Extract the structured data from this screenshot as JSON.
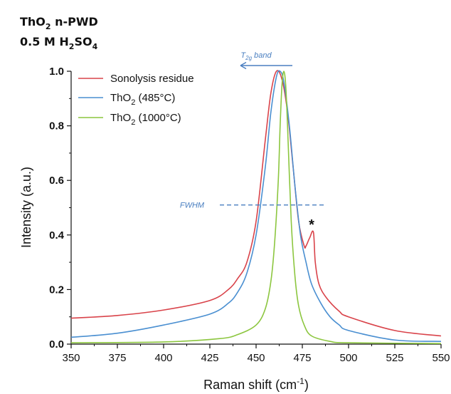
{
  "title": {
    "line1": {
      "pre": "ThO",
      "sub": "2",
      "post": " n-PWD"
    },
    "line2": {
      "pre": "0.5 M H",
      "sub1": "2",
      "mid": "SO",
      "sub2": "4"
    }
  },
  "chart_data": {
    "type": "line",
    "xlabel": {
      "pre": "Raman shift (cm",
      "sup": "-1",
      "post": ")"
    },
    "ylabel": "Intensity (a.u.)",
    "xlim": [
      350,
      550
    ],
    "ylim": [
      0.0,
      1.0
    ],
    "x_ticks": [
      "350",
      "375",
      "400",
      "425",
      "450",
      "475",
      "500",
      "525",
      "550"
    ],
    "y_ticks": [
      "0.0",
      "0.2",
      "0.4",
      "0.6",
      "0.8",
      "1.0"
    ],
    "legend_position": "top-left",
    "series": [
      {
        "name": "Sonolysis residue",
        "legend": {
          "pre": "Sonolysis residue",
          "sub": "",
          "post": ""
        },
        "color": "#d9434a",
        "x": [
          350,
          375,
          400,
          425,
          435,
          440,
          445,
          450,
          455,
          458,
          461,
          464,
          467,
          470,
          473,
          476,
          477,
          479,
          481,
          482,
          484,
          488,
          495,
          500,
          525,
          550
        ],
        "y": [
          0.095,
          0.105,
          0.125,
          0.16,
          0.2,
          0.24,
          0.3,
          0.45,
          0.75,
          0.92,
          1.0,
          0.97,
          0.85,
          0.65,
          0.45,
          0.36,
          0.36,
          0.39,
          0.41,
          0.3,
          0.22,
          0.17,
          0.12,
          0.1,
          0.05,
          0.03
        ]
      },
      {
        "name": "ThO2 (485°C)",
        "legend": {
          "pre": "ThO",
          "sub": "2",
          "post": " (485°C)"
        },
        "color": "#4a8fd1",
        "x": [
          350,
          375,
          400,
          425,
          435,
          440,
          445,
          450,
          455,
          458,
          461,
          463,
          465,
          468,
          471,
          474,
          477,
          480,
          485,
          490,
          495,
          500,
          525,
          550
        ],
        "y": [
          0.025,
          0.04,
          0.07,
          0.11,
          0.15,
          0.19,
          0.26,
          0.4,
          0.65,
          0.85,
          0.98,
          1.0,
          0.96,
          0.8,
          0.58,
          0.4,
          0.3,
          0.22,
          0.15,
          0.1,
          0.07,
          0.05,
          0.015,
          0.01
        ]
      },
      {
        "name": "ThO2 (1000°C)",
        "legend": {
          "pre": "ThO",
          "sub": "2",
          "post": " (1000°C)"
        },
        "color": "#8cc63f",
        "x": [
          350,
          400,
          430,
          440,
          450,
          455,
          458,
          460,
          462,
          463,
          464,
          465,
          466,
          467,
          469,
          471,
          473,
          476,
          480,
          490,
          500,
          550
        ],
        "y": [
          0.005,
          0.008,
          0.02,
          0.035,
          0.07,
          0.13,
          0.23,
          0.37,
          0.6,
          0.8,
          0.95,
          1.0,
          0.95,
          0.8,
          0.45,
          0.25,
          0.14,
          0.07,
          0.03,
          0.01,
          0.005,
          0.002
        ]
      }
    ],
    "annotations": {
      "band": {
        "pre": "T",
        "sub": "2g",
        "post": " band"
      },
      "fwhm": "FWHM",
      "fwhm_y": 0.51,
      "star": "*"
    },
    "grid": false
  }
}
